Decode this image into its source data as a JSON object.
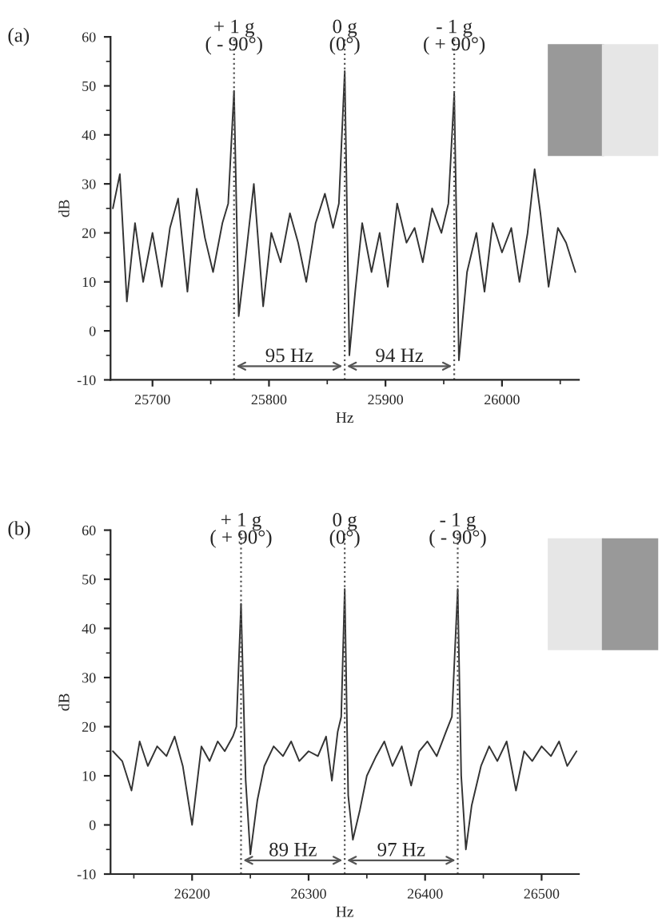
{
  "chart_data": [
    {
      "type": "line",
      "title": "(a)",
      "xlabel": "Hz",
      "ylabel": "dB",
      "xlim": [
        25664,
        26066
      ],
      "xticks": [
        25700,
        25800,
        25900,
        26000
      ],
      "ylim": [
        -10,
        60
      ],
      "yticks": [
        -10,
        0,
        10,
        20,
        30,
        40,
        50,
        60
      ],
      "grid": false,
      "legend": false,
      "marker": "none",
      "line_style": "solid",
      "series": [
        {
          "color": "#333333",
          "x": [
            25666,
            25672,
            25678,
            25685,
            25692,
            25700,
            25708,
            25715,
            25722,
            25730,
            25738,
            25745,
            25752,
            25760,
            25765,
            25770,
            25774,
            25780,
            25787,
            25795,
            25802,
            25810,
            25818,
            25825,
            25832,
            25840,
            25848,
            25855,
            25860,
            25865,
            25869,
            25874,
            25880,
            25888,
            25895,
            25902,
            25910,
            25918,
            25925,
            25932,
            25940,
            25948,
            25954,
            25959,
            25963,
            25970,
            25978,
            25985,
            25992,
            26000,
            26008,
            26015,
            26022,
            26028,
            26033,
            26040,
            26048,
            26055,
            26063
          ],
          "values": [
            25,
            32,
            6,
            22,
            10,
            20,
            9,
            21,
            27,
            8,
            29,
            19,
            12,
            22,
            26,
            49,
            3,
            15,
            30,
            5,
            20,
            14,
            24,
            18,
            10,
            22,
            28,
            21,
            26,
            53,
            -5,
            8,
            22,
            12,
            20,
            9,
            26,
            18,
            21,
            14,
            25,
            20,
            26,
            48.5,
            -6,
            12,
            20,
            8,
            22,
            16,
            21,
            10,
            20,
            33,
            24,
            9,
            21,
            18,
            12
          ]
        }
      ],
      "ref_lines": [
        {
          "axis": "x",
          "value": 25770,
          "line_style": "dotted",
          "color": "#555555"
        },
        {
          "axis": "x",
          "value": 25865,
          "line_style": "dotted",
          "color": "#555555"
        },
        {
          "axis": "x",
          "value": 25959,
          "line_style": "dotted",
          "color": "#555555"
        }
      ],
      "annotations": [
        {
          "text": "+ 1 g\n( - 90°)",
          "x": 25770,
          "y": 60
        },
        {
          "text": "0 g\n(0°)",
          "x": 25865,
          "y": 60
        },
        {
          "text": "- 1 g\n( + 90°)",
          "x": 25959,
          "y": 60
        },
        "95 Hz",
        "94 Hz"
      ]
    },
    {
      "type": "line",
      "title": "(b)",
      "xlabel": "Hz",
      "ylabel": "dB",
      "xlim": [
        26130,
        26532
      ],
      "xticks": [
        26200,
        26300,
        26400,
        26500
      ],
      "ylim": [
        -10,
        60
      ],
      "yticks": [
        -10,
        0,
        10,
        20,
        30,
        40,
        50,
        60
      ],
      "grid": false,
      "legend": false,
      "marker": "none",
      "line_style": "solid",
      "series": [
        {
          "color": "#333333",
          "x": [
            26132,
            26140,
            26148,
            26155,
            26162,
            26170,
            26178,
            26185,
            26192,
            26200,
            26208,
            26215,
            26222,
            26228,
            26235,
            26238,
            26242,
            26246,
            26250,
            26256,
            26262,
            26270,
            26278,
            26285,
            26292,
            26300,
            26308,
            26315,
            26320,
            26325,
            26328,
            26331,
            26334,
            26338,
            26344,
            26350,
            26358,
            26365,
            26372,
            26380,
            26388,
            26395,
            26402,
            26410,
            26418,
            26423,
            26428,
            26431,
            26435,
            26440,
            26448,
            26455,
            26462,
            26470,
            26478,
            26485,
            26492,
            26500,
            26508,
            26515,
            26522,
            26530
          ],
          "values": [
            15,
            13,
            7,
            17,
            12,
            16,
            14,
            18,
            12,
            0,
            16,
            13,
            17,
            15,
            18,
            20,
            45,
            9,
            -6,
            5,
            12,
            16,
            14,
            17,
            13,
            15,
            14,
            18,
            9,
            19,
            22,
            48,
            6,
            -3,
            3,
            10,
            14,
            17,
            12,
            16,
            8,
            15,
            17,
            14,
            19,
            22,
            48,
            10,
            -5,
            4,
            12,
            16,
            13,
            17,
            7,
            15,
            13,
            16,
            14,
            17,
            12,
            15
          ]
        }
      ],
      "ref_lines": [
        {
          "axis": "x",
          "value": 26242,
          "line_style": "dotted",
          "color": "#555555"
        },
        {
          "axis": "x",
          "value": 26331,
          "line_style": "dotted",
          "color": "#555555"
        },
        {
          "axis": "x",
          "value": 26428,
          "line_style": "dotted",
          "color": "#555555"
        }
      ],
      "annotations": [
        {
          "text": "+ 1 g\n( + 90°)",
          "x": 26242,
          "y": 60
        },
        {
          "text": "0 g\n(0°)",
          "x": 26331,
          "y": 60
        },
        {
          "text": "- 1 g\n( - 90°)",
          "x": 26428,
          "y": 60
        },
        "89 Hz",
        "97 Hz"
      ]
    }
  ]
}
